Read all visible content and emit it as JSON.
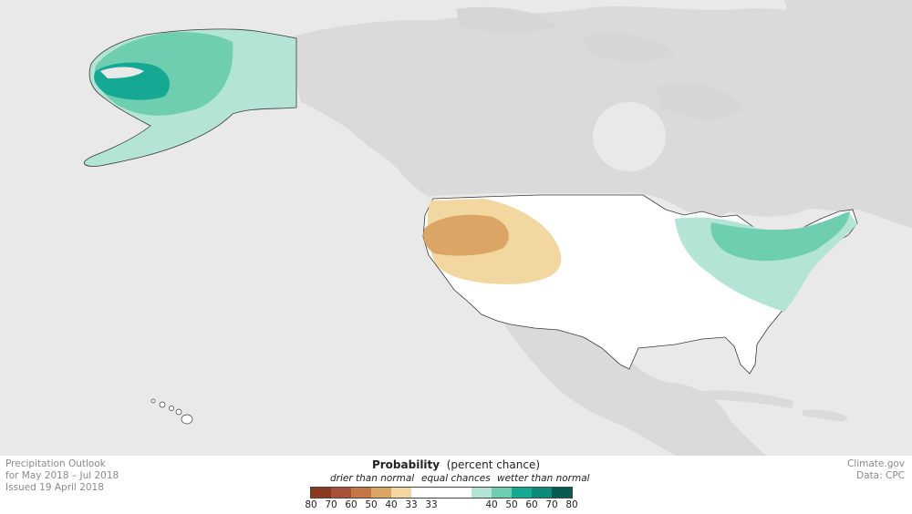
{
  "title_block": {
    "line1": "Precipitation Outlook",
    "line2": "for May 2018 – Jul 2018",
    "line3": "Issued 19 April 2018"
  },
  "credits": {
    "line1": "Climate.gov",
    "line2": "Data: CPC"
  },
  "legend": {
    "title_bold": "Probability",
    "title_rest": "(percent chance)",
    "categories": [
      "drier than normal",
      "equal chances",
      "wetter than normal"
    ],
    "colors": [
      "#8b3a22",
      "#a8513a",
      "#c47744",
      "#dba565",
      "#f3d7a0",
      "#ffffff",
      "#b3e4d5",
      "#6fcdb0",
      "#15a994",
      "#0c8a7a",
      "#075a4d"
    ],
    "ticks": [
      "80",
      "70",
      "60",
      "50",
      "40",
      "33",
      "33",
      "40",
      "50",
      "60",
      "70",
      "80"
    ]
  },
  "colors": {
    "ocean": "#e9e9e9",
    "land": "#dadada",
    "usa": "#ffffff",
    "border": "#3a3a3a"
  }
}
